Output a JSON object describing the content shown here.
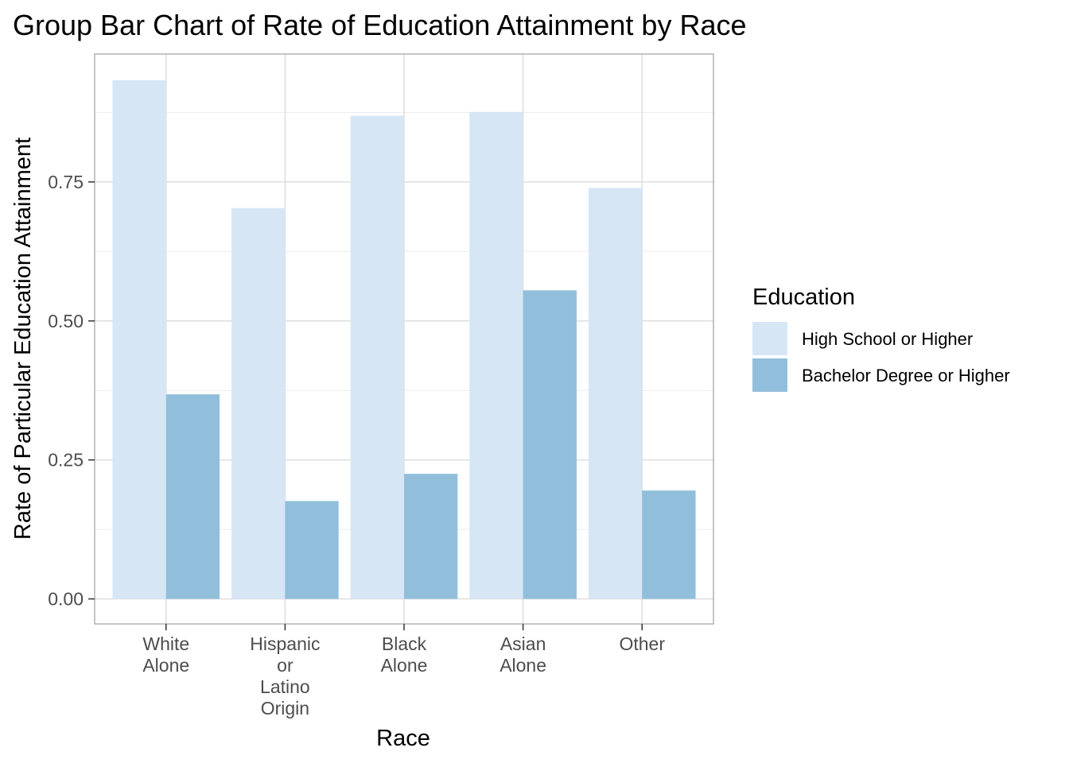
{
  "chart_data": {
    "type": "bar",
    "title": "Group Bar Chart of Rate of Education Attainment by Race",
    "xlabel": "Race",
    "ylabel": "Rate of Particular Education Attainment",
    "categories": [
      [
        "White",
        "Alone"
      ],
      [
        "Hispanic",
        "or",
        "Latino",
        "Origin"
      ],
      [
        "Black",
        "Alone"
      ],
      [
        "Asian",
        "Alone"
      ],
      [
        "Other"
      ]
    ],
    "series": [
      {
        "name": "High School or Higher",
        "color": "#d7e6f5",
        "values": [
          0.933,
          0.703,
          0.869,
          0.876,
          0.739
        ]
      },
      {
        "name": "Bachelor Degree or Higher",
        "color": "#91bfdb",
        "values": [
          0.368,
          0.176,
          0.225,
          0.555,
          0.195
        ]
      }
    ],
    "ylim": [
      -0.045,
      0.98
    ],
    "yticks": [
      0.0,
      0.25,
      0.5,
      0.75
    ],
    "ytick_labels": [
      "0.00",
      "0.25",
      "0.50",
      "0.75"
    ],
    "grid": true,
    "legend": {
      "title": "Education",
      "position": "right"
    }
  }
}
